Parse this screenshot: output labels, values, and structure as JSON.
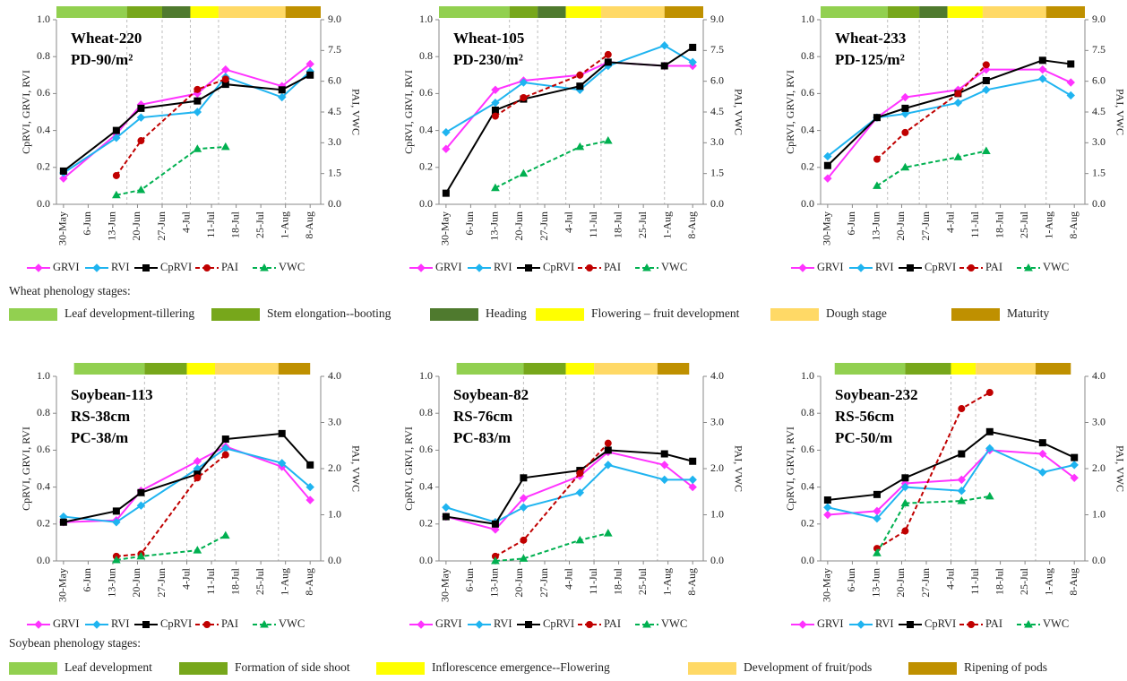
{
  "chart_data": [
    {
      "type": "line",
      "annotation": [
        "Wheat-220",
        "PD-90/m²"
      ],
      "ylabel": "CpRVI, GRVI, RVI",
      "y2label": "PAI, VWC",
      "x": [
        "30-May",
        "14-Jun",
        "21-Jun",
        "7-Jul",
        "15-Jul",
        "31-Jul",
        "8-Aug"
      ],
      "xlim": [
        "28-May",
        "11-Aug"
      ],
      "xticks": [
        "30-May",
        "6-Jun",
        "13-Jun",
        "20-Jun",
        "27-Jun",
        "4-Jul",
        "11-Jul",
        "18-Jul",
        "25-Jul",
        "1-Aug",
        "8-Aug"
      ],
      "ylim": [
        0,
        1
      ],
      "yticks": [
        {
          "value": 0,
          "label": "0.0"
        },
        0.2,
        0.4,
        0.6,
        0.8,
        {
          "value": 1,
          "label": "1.0"
        }
      ],
      "y2lim": [
        0,
        9
      ],
      "y2ticks": [
        {
          "value": 0,
          "label": "0.0"
        },
        1.5,
        {
          "value": 3,
          "label": "3.0"
        },
        4.5,
        {
          "value": 6,
          "label": "6.0"
        },
        7.5,
        {
          "value": 9,
          "label": "9.0"
        }
      ],
      "stage_breaks": [
        "28-May",
        "17-Jun",
        "27-Jun",
        "5-Jul",
        "13-Jul",
        "1-Aug",
        "11-Aug"
      ],
      "stage_colors": [
        "#92d050",
        "#77a71b",
        "#4f7a2e",
        "#ffff00",
        "#ffd966",
        "#bf9000"
      ],
      "series": [
        {
          "name": "GRVI",
          "color": "#ff33ff",
          "marker": "diamond",
          "values": [
            0.14,
            0.38,
            0.54,
            0.6,
            0.73,
            0.64,
            0.76
          ]
        },
        {
          "name": "RVI",
          "color": "#1fb4f0",
          "marker": "diamond",
          "values": [
            0.17,
            0.36,
            0.47,
            0.5,
            0.69,
            0.58,
            0.72
          ]
        },
        {
          "name": "CpRVI",
          "color": "#000000",
          "marker": "square",
          "values": [
            0.18,
            0.4,
            0.52,
            0.56,
            0.65,
            0.62,
            0.7
          ]
        },
        {
          "name": "PAI",
          "color": "#c00000",
          "marker": "circle",
          "dashed": true,
          "axis": "y2",
          "values": [
            null,
            1.4,
            3.1,
            5.6,
            6.1,
            null,
            null
          ]
        },
        {
          "name": "VWC",
          "color": "#00b050",
          "marker": "triangle",
          "dashed": true,
          "axis": "y2",
          "values": [
            null,
            0.45,
            0.7,
            2.7,
            2.8,
            null,
            null
          ]
        }
      ]
    },
    {
      "type": "line",
      "annotation": [
        "Wheat-105",
        "PD-230/m²"
      ],
      "ylabel": "CpRVI, GRVI, RVI",
      "y2label": "PAI, VWC",
      "x": [
        "30-May",
        "13-Jun",
        "21-Jun",
        "7-Jul",
        "15-Jul",
        "31-Jul",
        "8-Aug"
      ],
      "xlim": [
        "28-May",
        "11-Aug"
      ],
      "xticks": [
        "30-May",
        "6-Jun",
        "13-Jun",
        "20-Jun",
        "27-Jun",
        "4-Jul",
        "11-Jul",
        "18-Jul",
        "25-Jul",
        "1-Aug",
        "8-Aug"
      ],
      "ylim": [
        0,
        1
      ],
      "yticks": [
        {
          "value": 0,
          "label": "0.0"
        },
        0.2,
        0.4,
        0.6,
        0.8,
        {
          "value": 1,
          "label": "1.0"
        }
      ],
      "y2lim": [
        0,
        9
      ],
      "y2ticks": [
        {
          "value": 0,
          "label": "0.0"
        },
        1.5,
        {
          "value": 3,
          "label": "3.0"
        },
        4.5,
        {
          "value": 6,
          "label": "6.0"
        },
        7.5,
        {
          "value": 9,
          "label": "9.0"
        }
      ],
      "stage_breaks": [
        "28-May",
        "17-Jun",
        "25-Jun",
        "3-Jul",
        "13-Jul",
        "31-Jul",
        "11-Aug"
      ],
      "stage_colors": [
        "#92d050",
        "#77a71b",
        "#4f7a2e",
        "#ffff00",
        "#ffd966",
        "#bf9000"
      ],
      "series": [
        {
          "name": "GRVI",
          "color": "#ff33ff",
          "marker": "diamond",
          "values": [
            0.3,
            0.62,
            0.67,
            0.7,
            0.77,
            0.75,
            0.75
          ]
        },
        {
          "name": "RVI",
          "color": "#1fb4f0",
          "marker": "diamond",
          "values": [
            0.39,
            0.55,
            0.66,
            0.62,
            0.75,
            0.86,
            0.77
          ]
        },
        {
          "name": "CpRVI",
          "color": "#000000",
          "marker": "square",
          "values": [
            0.06,
            0.51,
            0.57,
            0.64,
            0.77,
            0.75,
            0.85
          ]
        },
        {
          "name": "PAI",
          "color": "#c00000",
          "marker": "circle",
          "dashed": true,
          "axis": "y2",
          "values": [
            null,
            4.3,
            5.2,
            6.3,
            7.3,
            null,
            null
          ]
        },
        {
          "name": "VWC",
          "color": "#00b050",
          "marker": "triangle",
          "dashed": true,
          "axis": "y2",
          "values": [
            null,
            0.8,
            1.5,
            2.8,
            3.1,
            null,
            null
          ]
        }
      ]
    },
    {
      "type": "line",
      "annotation": [
        "Wheat-233",
        "PD-125/m²"
      ],
      "ylabel": "CpRVI, GRVI, RVI",
      "y2label": "PAI, VWC",
      "x": [
        "30-May",
        "13-Jun",
        "21-Jun",
        "6-Jul",
        "14-Jul",
        "30-Jul",
        "7-Aug"
      ],
      "xlim": [
        "28-May",
        "11-Aug"
      ],
      "xticks": [
        "30-May",
        "6-Jun",
        "13-Jun",
        "20-Jun",
        "27-Jun",
        "4-Jul",
        "11-Jul",
        "18-Jul",
        "25-Jul",
        "1-Aug",
        "8-Aug"
      ],
      "ylim": [
        0,
        1
      ],
      "yticks": [
        {
          "value": 0,
          "label": "0.0"
        },
        0.2,
        0.4,
        0.6,
        0.8,
        {
          "value": 1,
          "label": "1.0"
        }
      ],
      "y2lim": [
        0,
        9
      ],
      "y2ticks": [
        {
          "value": 0,
          "label": "0.0"
        },
        1.5,
        {
          "value": 3,
          "label": "3.0"
        },
        4.5,
        {
          "value": 6,
          "label": "6.0"
        },
        7.5,
        {
          "value": 9,
          "label": "9.0"
        }
      ],
      "stage_breaks": [
        "28-May",
        "16-Jun",
        "25-Jun",
        "3-Jul",
        "13-Jul",
        "31-Jul",
        "11-Aug"
      ],
      "stage_colors": [
        "#92d050",
        "#77a71b",
        "#4f7a2e",
        "#ffff00",
        "#ffd966",
        "#bf9000"
      ],
      "series": [
        {
          "name": "GRVI",
          "color": "#ff33ff",
          "marker": "diamond",
          "values": [
            0.14,
            0.47,
            0.58,
            0.62,
            0.73,
            0.73,
            0.66
          ]
        },
        {
          "name": "RVI",
          "color": "#1fb4f0",
          "marker": "diamond",
          "values": [
            0.26,
            0.47,
            0.49,
            0.55,
            0.62,
            0.68,
            0.59
          ]
        },
        {
          "name": "CpRVI",
          "color": "#000000",
          "marker": "square",
          "values": [
            0.21,
            0.47,
            0.52,
            0.6,
            0.67,
            0.78,
            0.76
          ]
        },
        {
          "name": "PAI",
          "color": "#c00000",
          "marker": "circle",
          "dashed": true,
          "axis": "y2",
          "values": [
            null,
            2.2,
            3.5,
            5.4,
            6.8,
            null,
            null
          ]
        },
        {
          "name": "VWC",
          "color": "#00b050",
          "marker": "triangle",
          "dashed": true,
          "axis": "y2",
          "values": [
            null,
            0.9,
            1.8,
            2.3,
            2.6,
            null,
            null
          ]
        }
      ]
    },
    {
      "type": "line",
      "annotation": [
        "Soybean-113",
        "RS-38cm",
        "PC-38/m"
      ],
      "ylabel": "CpRVI, GRVI, RVI",
      "y2label": "PAI, VWC",
      "x": [
        "30-May",
        "14-Jun",
        "21-Jun",
        "7-Jul",
        "15-Jul",
        "31-Jul",
        "8-Aug"
      ],
      "xlim": [
        "28-May",
        "11-Aug"
      ],
      "xticks": [
        "30-May",
        "6-Jun",
        "13-Jun",
        "20-Jun",
        "27-Jun",
        "4-Jul",
        "11-Jul",
        "18-Jul",
        "25-Jul",
        "1-Aug",
        "8-Aug"
      ],
      "ylim": [
        0,
        1
      ],
      "yticks": [
        {
          "value": 0,
          "label": "0.0"
        },
        0.2,
        0.4,
        0.6,
        0.8,
        {
          "value": 1,
          "label": "1.0"
        }
      ],
      "y2lim": [
        0,
        4
      ],
      "y2ticks": [
        {
          "value": 0,
          "label": "0.0"
        },
        {
          "value": 1,
          "label": "1.0"
        },
        {
          "value": 2,
          "label": "2.0"
        },
        {
          "value": 3,
          "label": "3.0"
        },
        {
          "value": 4,
          "label": "4.0"
        }
      ],
      "stage_breaks": [
        "2-Jun",
        "22-Jun",
        "4-Jul",
        "12-Jul",
        "30-Jul",
        "8-Aug"
      ],
      "stage_colors": [
        "#92d050",
        "#77a71b",
        "#ffff00",
        "#ffd966",
        "#bf9000"
      ],
      "series": [
        {
          "name": "GRVI",
          "color": "#ff33ff",
          "marker": "diamond",
          "values": [
            0.21,
            0.22,
            0.38,
            0.54,
            0.62,
            0.51,
            0.33
          ]
        },
        {
          "name": "RVI",
          "color": "#1fb4f0",
          "marker": "diamond",
          "values": [
            0.24,
            0.21,
            0.3,
            0.5,
            0.61,
            0.53,
            0.4
          ]
        },
        {
          "name": "CpRVI",
          "color": "#000000",
          "marker": "square",
          "values": [
            0.21,
            0.27,
            0.37,
            0.47,
            0.66,
            0.69,
            0.52
          ]
        },
        {
          "name": "PAI",
          "color": "#c00000",
          "marker": "circle",
          "dashed": true,
          "axis": "y2",
          "values": [
            null,
            0.1,
            0.15,
            1.8,
            2.3,
            null,
            null
          ]
        },
        {
          "name": "VWC",
          "color": "#00b050",
          "marker": "triangle",
          "dashed": true,
          "axis": "y2",
          "values": [
            null,
            0.02,
            0.1,
            0.23,
            0.55,
            null,
            null
          ]
        }
      ]
    },
    {
      "type": "line",
      "annotation": [
        "Soybean-82",
        "RS-76cm",
        "PC-83/m"
      ],
      "ylabel": "CpRVI, GRVI, RVI",
      "y2label": "PAI, VWC",
      "x": [
        "30-May",
        "13-Jun",
        "21-Jun",
        "7-Jul",
        "15-Jul",
        "31-Jul",
        "8-Aug"
      ],
      "xlim": [
        "28-May",
        "11-Aug"
      ],
      "xticks": [
        "30-May",
        "6-Jun",
        "13-Jun",
        "20-Jun",
        "27-Jun",
        "4-Jul",
        "11-Jul",
        "18-Jul",
        "25-Jul",
        "1-Aug",
        "8-Aug"
      ],
      "ylim": [
        0,
        1
      ],
      "yticks": [
        {
          "value": 0,
          "label": "0.0"
        },
        0.2,
        0.4,
        0.6,
        0.8,
        {
          "value": 1,
          "label": "1.0"
        }
      ],
      "y2lim": [
        0,
        4
      ],
      "y2ticks": [
        {
          "value": 0,
          "label": "0.0"
        },
        {
          "value": 1,
          "label": "1.0"
        },
        {
          "value": 2,
          "label": "2.0"
        },
        {
          "value": 3,
          "label": "3.0"
        },
        {
          "value": 4,
          "label": "4.0"
        }
      ],
      "stage_breaks": [
        "2-Jun",
        "21-Jun",
        "3-Jul",
        "11-Jul",
        "29-Jul",
        "7-Aug"
      ],
      "stage_colors": [
        "#92d050",
        "#77a71b",
        "#ffff00",
        "#ffd966",
        "#bf9000"
      ],
      "series": [
        {
          "name": "GRVI",
          "color": "#ff33ff",
          "marker": "diamond",
          "values": [
            0.24,
            0.17,
            0.34,
            0.46,
            0.59,
            0.52,
            0.4
          ]
        },
        {
          "name": "RVI",
          "color": "#1fb4f0",
          "marker": "diamond",
          "values": [
            0.29,
            0.21,
            0.29,
            0.37,
            0.52,
            0.44,
            0.44
          ]
        },
        {
          "name": "CpRVI",
          "color": "#000000",
          "marker": "square",
          "values": [
            0.24,
            0.2,
            0.45,
            0.49,
            0.6,
            0.58,
            0.54
          ]
        },
        {
          "name": "PAI",
          "color": "#c00000",
          "marker": "circle",
          "dashed": true,
          "axis": "y2",
          "values": [
            null,
            0.1,
            0.45,
            1.9,
            2.55,
            null,
            null
          ]
        },
        {
          "name": "VWC",
          "color": "#00b050",
          "marker": "triangle",
          "dashed": true,
          "axis": "y2",
          "values": [
            null,
            0,
            0.05,
            0.45,
            0.6,
            null,
            null
          ]
        }
      ]
    },
    {
      "type": "line",
      "annotation": [
        "Soybean-232",
        "RS-56cm",
        "PC-50/m"
      ],
      "ylabel": "CpRVI, GRVI, RVI",
      "y2label": "PAI, VWC",
      "x": [
        "30-May",
        "13-Jun",
        "21-Jun",
        "7-Jul",
        "15-Jul",
        "30-Jul",
        "8-Aug"
      ],
      "xlim": [
        "28-May",
        "11-Aug"
      ],
      "xticks": [
        "30-May",
        "6-Jun",
        "13-Jun",
        "20-Jun",
        "27-Jun",
        "4-Jul",
        "11-Jul",
        "18-Jul",
        "25-Jul",
        "1-Aug",
        "8-Aug"
      ],
      "ylim": [
        0,
        1
      ],
      "yticks": [
        {
          "value": 0,
          "label": "0.0"
        },
        0.2,
        0.4,
        0.6,
        0.8,
        {
          "value": 1,
          "label": "1.0"
        }
      ],
      "y2lim": [
        0,
        4
      ],
      "y2ticks": [
        {
          "value": 0,
          "label": "0.0"
        },
        {
          "value": 1,
          "label": "1.0"
        },
        {
          "value": 2,
          "label": "2.0"
        },
        {
          "value": 3,
          "label": "3.0"
        },
        {
          "value": 4,
          "label": "4.0"
        }
      ],
      "stage_breaks": [
        "1-Jun",
        "21-Jun",
        "4-Jul",
        "11-Jul",
        "28-Jul",
        "7-Aug"
      ],
      "stage_colors": [
        "#92d050",
        "#77a71b",
        "#ffff00",
        "#ffd966",
        "#bf9000"
      ],
      "series": [
        {
          "name": "GRVI",
          "color": "#ff33ff",
          "marker": "diamond",
          "values": [
            0.25,
            0.27,
            0.42,
            0.44,
            0.6,
            0.58,
            0.45
          ]
        },
        {
          "name": "RVI",
          "color": "#1fb4f0",
          "marker": "diamond",
          "values": [
            0.29,
            0.23,
            0.4,
            0.38,
            0.61,
            0.48,
            0.52
          ]
        },
        {
          "name": "CpRVI",
          "color": "#000000",
          "marker": "square",
          "values": [
            0.33,
            0.36,
            0.45,
            0.58,
            0.7,
            0.64,
            0.56
          ]
        },
        {
          "name": "PAI",
          "color": "#c00000",
          "marker": "circle",
          "dashed": true,
          "axis": "y2",
          "values": [
            null,
            0.27,
            0.65,
            3.3,
            3.65,
            null,
            null
          ]
        },
        {
          "name": "VWC",
          "color": "#00b050",
          "marker": "triangle",
          "dashed": true,
          "axis": "y2",
          "values": [
            null,
            0.17,
            1.25,
            1.3,
            1.4,
            null,
            null
          ]
        }
      ]
    }
  ],
  "wheat_phenology": {
    "title": "Wheat phenology stages:",
    "stages": [
      {
        "name": "Leaf development-tillering",
        "color": "#92d050"
      },
      {
        "name": "Stem elongation--booting",
        "color": "#77a71b"
      },
      {
        "name": "Heading",
        "color": "#4f7a2e"
      },
      {
        "name": "Flowering – fruit development",
        "color": "#ffff00"
      },
      {
        "name": "Dough stage",
        "color": "#ffd966"
      },
      {
        "name": "Maturity",
        "color": "#bf9000"
      }
    ]
  },
  "soybean_phenology": {
    "title": "Soybean phenology stages:",
    "stages": [
      {
        "name": "Leaf development",
        "color": "#92d050"
      },
      {
        "name": "Formation of side shoot",
        "color": "#77a71b"
      },
      {
        "name": "Inflorescence emergence--Flowering",
        "color": "#ffff00"
      },
      {
        "name": "Development of fruit/pods",
        "color": "#ffd966"
      },
      {
        "name": "Ripening of pods",
        "color": "#bf9000"
      }
    ]
  }
}
